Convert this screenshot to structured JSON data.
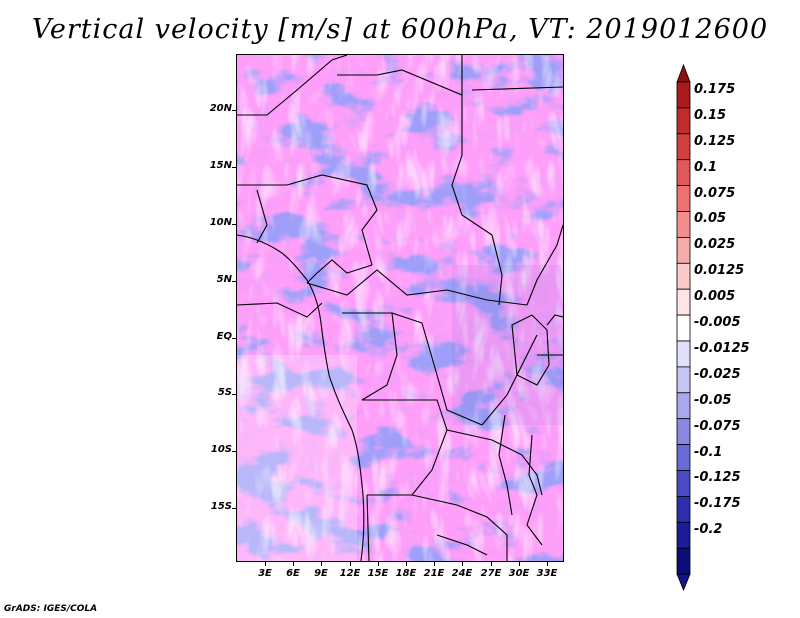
{
  "title": "Vertical velocity [m/s] at 600hPa, VT: 2019012600",
  "footer": "GrADS: IGES/COLA",
  "map": {
    "lat_labels": [
      "20N",
      "15N",
      "10N",
      "5N",
      "EQ",
      "5S",
      "10S",
      "15S"
    ],
    "lon_labels": [
      "3E",
      "6E",
      "9E",
      "12E",
      "15E",
      "18E",
      "21E",
      "24E",
      "27E",
      "30E",
      "33E"
    ],
    "lon_range": [
      0,
      35
    ],
    "lat_range": [
      -20,
      25
    ]
  },
  "colorbar": {
    "labels": [
      "0.175",
      "0.15",
      "0.125",
      "0.1",
      "0.075",
      "0.05",
      "0.025",
      "0.0125",
      "0.005",
      "-0.005",
      "-0.0125",
      "-0.025",
      "-0.05",
      "-0.075",
      "-0.1",
      "-0.125",
      "-0.175",
      "-0.2"
    ],
    "colors": [
      "#ab1a1a",
      "#c02b2b",
      "#d23f3f",
      "#e35858",
      "#ee7272",
      "#f48e8e",
      "#f7aaaa",
      "#fbcaca",
      "#fde5e5",
      "#ffffff",
      "#e0e0fb",
      "#c6c6f5",
      "#a8a8ee",
      "#8989e4",
      "#6a6ad6",
      "#4a4ac4",
      "#2f2fae",
      "#1c1c96",
      "#0d0d7a"
    ],
    "top_arrow_color": "#8e0f0f",
    "bottom_arrow_color": "#14148a"
  }
}
